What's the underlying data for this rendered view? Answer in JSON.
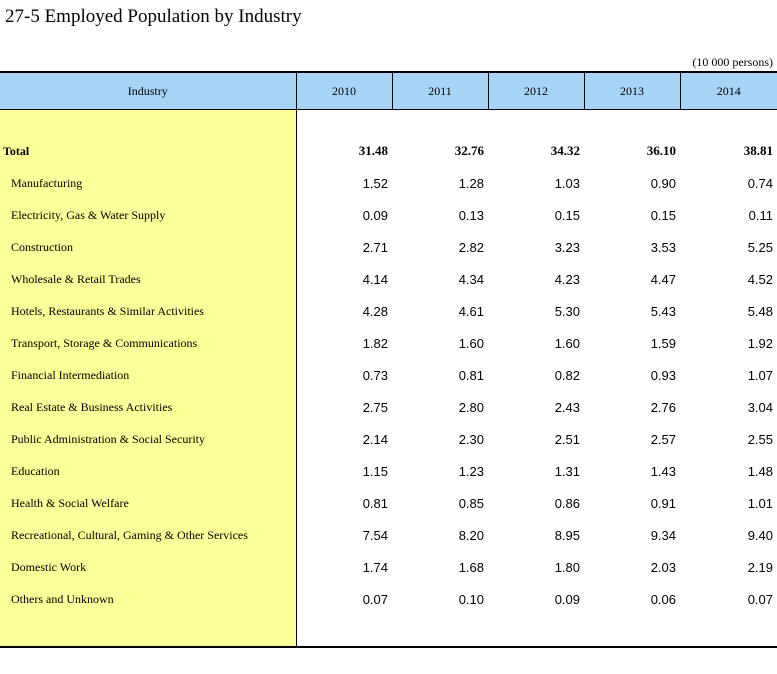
{
  "title": "27-5  Employed Population by Industry",
  "unit": "(10 000 persons)",
  "header": {
    "industry": "Industry",
    "years": [
      "2010",
      "2011",
      "2012",
      "2013",
      "2014"
    ]
  },
  "total": {
    "label": "Total",
    "values": [
      "31.48",
      "32.76",
      "34.32",
      "36.10",
      "38.81"
    ]
  },
  "rows": [
    {
      "label": "Manufacturing",
      "values": [
        "1.52",
        "1.28",
        "1.03",
        "0.90",
        "0.74"
      ]
    },
    {
      "label": "Electricity, Gas & Water Supply",
      "values": [
        "0.09",
        "0.13",
        "0.15",
        "0.15",
        "0.11"
      ]
    },
    {
      "label": "Construction",
      "values": [
        "2.71",
        "2.82",
        "3.23",
        "3.53",
        "5.25"
      ]
    },
    {
      "label": "Wholesale & Retail Trades",
      "values": [
        "4.14",
        "4.34",
        "4.23",
        "4.47",
        "4.52"
      ]
    },
    {
      "label": "Hotels, Restaurants & Similar Activities",
      "values": [
        "4.28",
        "4.61",
        "5.30",
        "5.43",
        "5.48"
      ]
    },
    {
      "label": "Transport, Storage & Communications",
      "values": [
        "1.82",
        "1.60",
        "1.60",
        "1.59",
        "1.92"
      ]
    },
    {
      "label": "Financial Intermediation",
      "values": [
        "0.73",
        "0.81",
        "0.82",
        "0.93",
        "1.07"
      ]
    },
    {
      "label": "Real Estate & Business Activities",
      "values": [
        "2.75",
        "2.80",
        "2.43",
        "2.76",
        "3.04"
      ]
    },
    {
      "label": "Public Administration & Social Security",
      "values": [
        "2.14",
        "2.30",
        "2.51",
        "2.57",
        "2.55"
      ]
    },
    {
      "label": "Education",
      "values": [
        "1.15",
        "1.23",
        "1.31",
        "1.43",
        "1.48"
      ]
    },
    {
      "label": "Health & Social Welfare",
      "values": [
        "0.81",
        "0.85",
        "0.86",
        "0.91",
        "1.01"
      ]
    },
    {
      "label": "Recreational, Cultural, Gaming & Other Services",
      "values": [
        "7.54",
        "8.20",
        "8.95",
        "9.34",
        "9.40"
      ]
    },
    {
      "label": "Domestic Work",
      "values": [
        "1.74",
        "1.68",
        "1.80",
        "2.03",
        "2.19"
      ]
    },
    {
      "label": "Others and Unknown",
      "values": [
        "0.07",
        "0.10",
        "0.09",
        "0.06",
        "0.07"
      ]
    }
  ]
}
